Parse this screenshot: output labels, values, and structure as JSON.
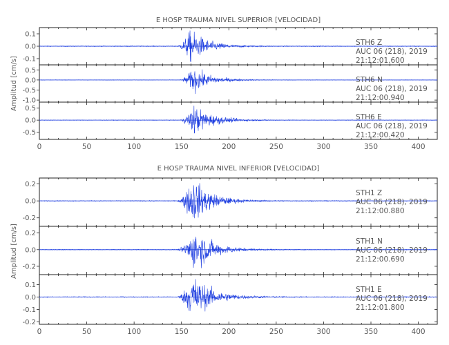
{
  "chart_data": [
    {
      "type": "line",
      "title": "E HOSP TRAUMA NIVEL SUPERIOR [VELOCIDAD]",
      "ylabel": "Amplitud [cm/s]",
      "xlabel": "",
      "xlim": [
        0,
        420
      ],
      "xticks": [
        "0",
        "50",
        "100",
        "150",
        "200",
        "250",
        "300",
        "350",
        "400"
      ],
      "xtick_values": [
        0,
        50,
        100,
        150,
        200,
        250,
        300,
        350,
        400
      ],
      "trace_color": "#1f3fe0",
      "channels": [
        {
          "label_lines": [
            "STH6   Z",
            "AUC 06 (218), 2019",
            "21:12:01.600"
          ],
          "ylim": [
            -0.15,
            0.15
          ],
          "ytick_values": [
            0.1,
            0.0,
            -0.1
          ],
          "ytick_labels": [
            "0.1",
            "0.0",
            "-0.1"
          ],
          "envelope": {
            "onset": 145,
            "peak_time": 160,
            "peak_amp": 0.12,
            "decay_end": 215,
            "noise": 0.003
          }
        },
        {
          "label_lines": [
            "STH6   N",
            "AUC 06 (218), 2019",
            "21:12:00.940"
          ],
          "ylim": [
            -1.1,
            0.75
          ],
          "ytick_values": [
            0.5,
            0.0,
            -0.5,
            -1.0
          ],
          "ytick_labels": [
            "0.5",
            "0.0",
            "-0.5",
            "-1.0"
          ],
          "envelope": {
            "onset": 148,
            "peak_time": 163,
            "peak_amp": 0.55,
            "decay_end": 220,
            "noise": 0.01
          }
        },
        {
          "label_lines": [
            "STH6   E",
            "AUC 06 (218), 2019",
            "21:12:00.420"
          ],
          "ylim": [
            -0.8,
            0.75
          ],
          "ytick_values": [
            0.5,
            0.0,
            -0.5
          ],
          "ytick_labels": [
            "0.5",
            "0.0",
            "-0.5"
          ],
          "envelope": {
            "onset": 148,
            "peak_time": 163,
            "peak_amp": 0.55,
            "decay_end": 225,
            "noise": 0.01
          }
        }
      ]
    },
    {
      "type": "line",
      "title": "E HOSP TRAUMA NIVEL INFERIOR [VELOCIDAD]",
      "ylabel": "Amplitud [cm/s]",
      "xlabel": "",
      "xlim": [
        0,
        420
      ],
      "xticks": [
        "0",
        "50",
        "100",
        "150",
        "200",
        "250",
        "300",
        "350",
        "400"
      ],
      "xtick_values": [
        0,
        50,
        100,
        150,
        200,
        250,
        300,
        350,
        400
      ],
      "trace_color": "#1f3fe0",
      "channels": [
        {
          "label_lines": [
            "STH1   Z",
            "AUC 06 (218), 2019",
            "21:12:00.880"
          ],
          "ylim": [
            -0.3,
            0.27
          ],
          "ytick_values": [
            0.2,
            0.0,
            -0.2
          ],
          "ytick_labels": [
            "0.2",
            "0.0",
            "-0.2"
          ],
          "envelope": {
            "onset": 145,
            "peak_time": 162,
            "peak_amp": 0.24,
            "decay_end": 220,
            "noise": 0.004
          }
        },
        {
          "label_lines": [
            "STH1   N",
            "AUC 06 (218), 2019",
            "21:12:00.690"
          ],
          "ylim": [
            -0.3,
            0.28
          ],
          "ytick_values": [
            0.2,
            0.0,
            -0.2
          ],
          "ytick_labels": [
            "0.2",
            "0.0",
            "-0.2"
          ],
          "envelope": {
            "onset": 145,
            "peak_time": 165,
            "peak_amp": 0.22,
            "decay_end": 225,
            "noise": 0.004
          }
        },
        {
          "label_lines": [
            "STH1   E",
            "AUC 06 (218), 2019",
            "21:12:01.800"
          ],
          "ylim": [
            -0.22,
            0.18
          ],
          "ytick_values": [
            0.1,
            0.0,
            -0.1,
            -0.2
          ],
          "ytick_labels": [
            "0.1",
            "0.0",
            "-0.1",
            "-0.2"
          ],
          "envelope": {
            "onset": 145,
            "peak_time": 162,
            "peak_amp": 0.16,
            "decay_end": 225,
            "noise": 0.003
          }
        }
      ]
    }
  ]
}
